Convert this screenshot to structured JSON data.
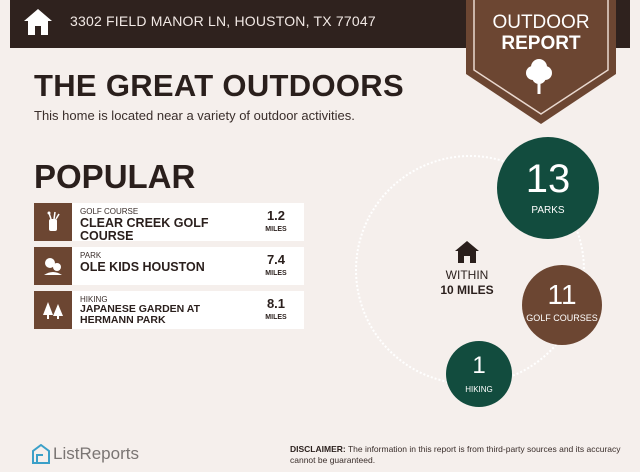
{
  "header": {
    "address": "3302 FIELD MANOR LN, HOUSTON, TX 77047",
    "icon": "home-icon"
  },
  "badge": {
    "line1": "OUTDOOR",
    "line2": "REPORT",
    "icon": "tree-icon",
    "color": "#6c4632"
  },
  "title": "THE GREAT OUTDOORS",
  "subtitle": "This home is located near a variety of outdoor activities.",
  "popular": {
    "heading": "POPULAR",
    "items": [
      {
        "category": "GOLF COURSE",
        "name": "CLEAR CREEK GOLF COURSE",
        "distance": "1.2",
        "unit": "MILES",
        "icon": "golf-bag-icon"
      },
      {
        "category": "PARK",
        "name": "OLE KIDS HOUSTON",
        "distance": "7.4",
        "unit": "MILES",
        "icon": "park-icon"
      },
      {
        "category": "HIKING",
        "name": "JAPANESE GARDEN AT HERMANN PARK",
        "distance": "8.1",
        "unit": "MILES",
        "icon": "trees-icon"
      }
    ]
  },
  "summary": {
    "within_label": "WITHIN",
    "within_value": "10 MILES",
    "stats": [
      {
        "value": "13",
        "label": "PARKS",
        "color": "#124c3e"
      },
      {
        "value": "11",
        "label": "GOLF COURSES",
        "color": "#6c4632"
      },
      {
        "value": "1",
        "label": "HIKING",
        "color": "#124c3e"
      }
    ]
  },
  "footer": {
    "logo": "ListReports",
    "disclaimer_label": "DISCLAIMER:",
    "disclaimer_text": " The information in this report is from third-party sources and its accuracy cannot be guaranteed."
  }
}
